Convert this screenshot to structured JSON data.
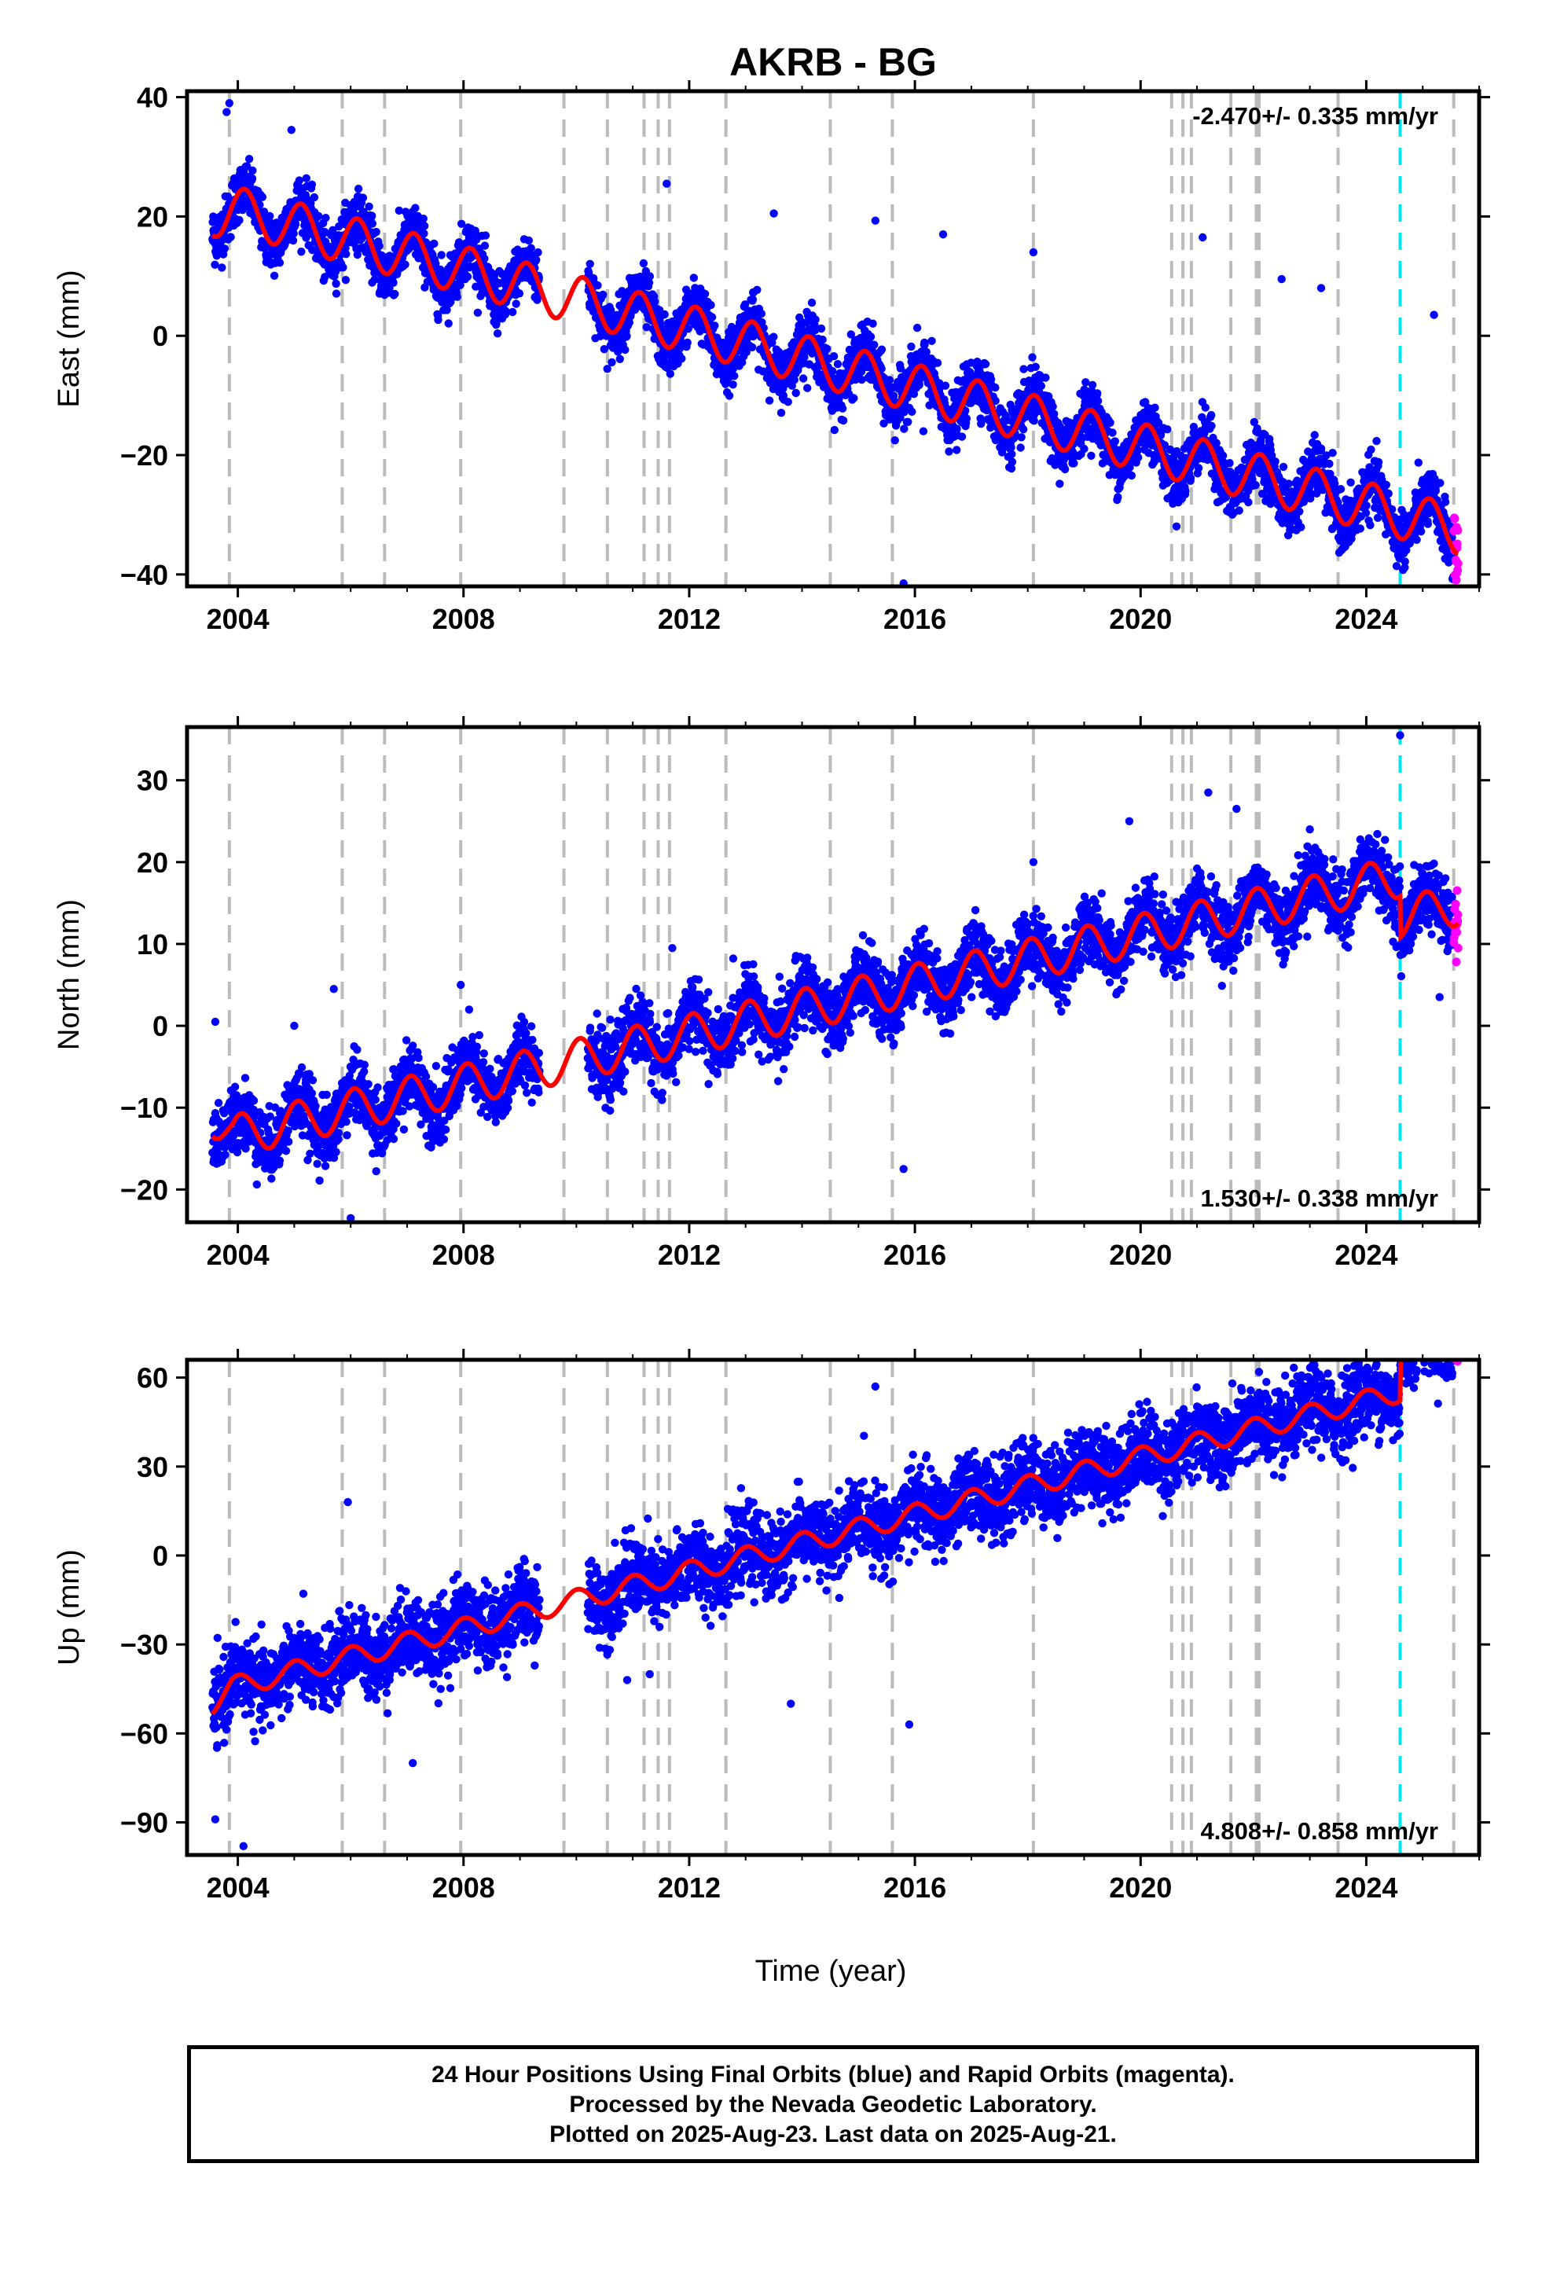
{
  "chart_data": {
    "type": "scatter",
    "title": "AKRB - BG",
    "xlabel": "Time (year)",
    "xlim": [
      2003.1,
      2026.0
    ],
    "x_ticks": [
      2004,
      2008,
      2012,
      2016,
      2020,
      2024
    ],
    "x_tick_labels": [
      "2004",
      "2008",
      "2012",
      "2016",
      "2020",
      "2024"
    ],
    "data_start": 2003.55,
    "final_orbit_end": 2025.55,
    "data_end": 2025.63,
    "gap": [
      2009.35,
      2010.2
    ],
    "series_colors": {
      "final_orbits": "#0000ff",
      "rapid_orbits": "#ff00ff",
      "model_fit": "#ff0000",
      "step_lines": "#bbbbbb",
      "event_line": "#00e5ee"
    },
    "step_line_years": [
      2003.85,
      2005.85,
      2006.6,
      2007.95,
      2009.78,
      2010.55,
      2011.2,
      2011.45,
      2011.65,
      2012.65,
      2014.5,
      2015.6,
      2018.1,
      2020.55,
      2020.75,
      2020.9,
      2021.6,
      2022.05,
      2022.1,
      2023.5,
      2025.55
    ],
    "event_line_year": 2024.6,
    "panels": [
      {
        "name": "East",
        "ylabel": "East (mm)",
        "ylim": [
          -42,
          41
        ],
        "y_ticks": [
          40,
          20,
          0,
          -20,
          -40
        ],
        "y_tick_labels": [
          "40",
          "20",
          "0",
          "−20",
          "−40"
        ],
        "velocity_text": "-2.470+/- 0.335 mm/yr",
        "velocity_position": "top-right",
        "fit": {
          "intercept": 22,
          "slope": -2.47,
          "annual_amp": 4.0,
          "phase": 0.8,
          "start_offset": -1.5,
          "steps": [
            {
              "year": 2024.6,
              "value": 0
            }
          ]
        },
        "noise_sd": 2.3,
        "outliers": [
          [
            2003.85,
            39.0
          ],
          [
            2003.8,
            37.5
          ],
          [
            2004.95,
            34.5
          ],
          [
            2011.6,
            25.5
          ],
          [
            2013.5,
            20.5
          ],
          [
            2015.3,
            19.3
          ],
          [
            2016.5,
            17.0
          ],
          [
            2018.1,
            14.0
          ],
          [
            2021.1,
            16.5
          ],
          [
            2022.5,
            9.5
          ],
          [
            2023.2,
            8.0
          ],
          [
            2015.8,
            -41.5
          ],
          [
            2016.15,
            -16.0
          ],
          [
            2025.2,
            3.5
          ]
        ]
      },
      {
        "name": "North",
        "ylabel": "North (mm)",
        "ylim": [
          -24,
          36.5
        ],
        "y_ticks": [
          30,
          20,
          10,
          0,
          -10,
          -20
        ],
        "y_tick_labels": [
          "30",
          "20",
          "10",
          "0",
          "−10",
          "−20"
        ],
        "velocity_text": "1.530+/- 0.338 mm/yr",
        "velocity_position": "bottom-right",
        "fit": {
          "intercept": -14,
          "slope": 1.53,
          "annual_amp": 2.5,
          "phase": 1.2,
          "start_offset": 3.0,
          "steps": [
            {
              "year": 2024.6,
              "value": -5.0
            }
          ]
        },
        "noise_sd": 2.0,
        "outliers": [
          [
            2003.6,
            0.5
          ],
          [
            2005.0,
            0.0
          ],
          [
            2005.7,
            4.5
          ],
          [
            2007.95,
            5.0
          ],
          [
            2011.7,
            9.5
          ],
          [
            2013.6,
            6.0
          ],
          [
            2016.1,
            9.5
          ],
          [
            2015.8,
            -17.5
          ],
          [
            2018.1,
            20.0
          ],
          [
            2019.8,
            25.0
          ],
          [
            2021.2,
            28.5
          ],
          [
            2021.7,
            26.5
          ],
          [
            2023.0,
            24.0
          ],
          [
            2024.6,
            35.5
          ],
          [
            2025.3,
            3.5
          ],
          [
            2006.0,
            -23.5
          ]
        ]
      },
      {
        "name": "Up",
        "ylabel": "Up (mm)",
        "ylim": [
          -101,
          66
        ],
        "y_ticks": [
          60,
          30,
          0,
          -30,
          -60,
          -90
        ],
        "y_tick_labels": [
          "60",
          "30",
          "0",
          "−30",
          "−60",
          "−90"
        ],
        "velocity_text": "4.808+/- 0.858 mm/yr",
        "velocity_position": "bottom-right",
        "fit": {
          "intercept": -46,
          "slope": 4.808,
          "annual_amp": 3.5,
          "phase": 1.5,
          "start_offset": -4.0,
          "steps": [
            {
              "year": 2024.6,
              "value": 15.0
            }
          ]
        },
        "noise_sd": 6.5,
        "outliers": [
          [
            2003.6,
            -89.0
          ],
          [
            2004.1,
            -98.0
          ],
          [
            2005.95,
            18.0
          ],
          [
            2007.1,
            -70.0
          ],
          [
            2015.3,
            57.0
          ],
          [
            2015.9,
            -57.0
          ],
          [
            2013.8,
            -50.0
          ],
          [
            2011.3,
            -40.0
          ],
          [
            2010.9,
            -42.0
          ],
          [
            2024.75,
            60.0
          ],
          [
            2025.5,
            63.0
          ]
        ]
      }
    ]
  },
  "footer": {
    "line1": "24 Hour Positions Using Final Orbits (blue) and Rapid Orbits (magenta).",
    "line2": "Processed by the Nevada Geodetic Laboratory.",
    "line3": "Plotted on 2025-Aug-23. Last data on 2025-Aug-21."
  }
}
